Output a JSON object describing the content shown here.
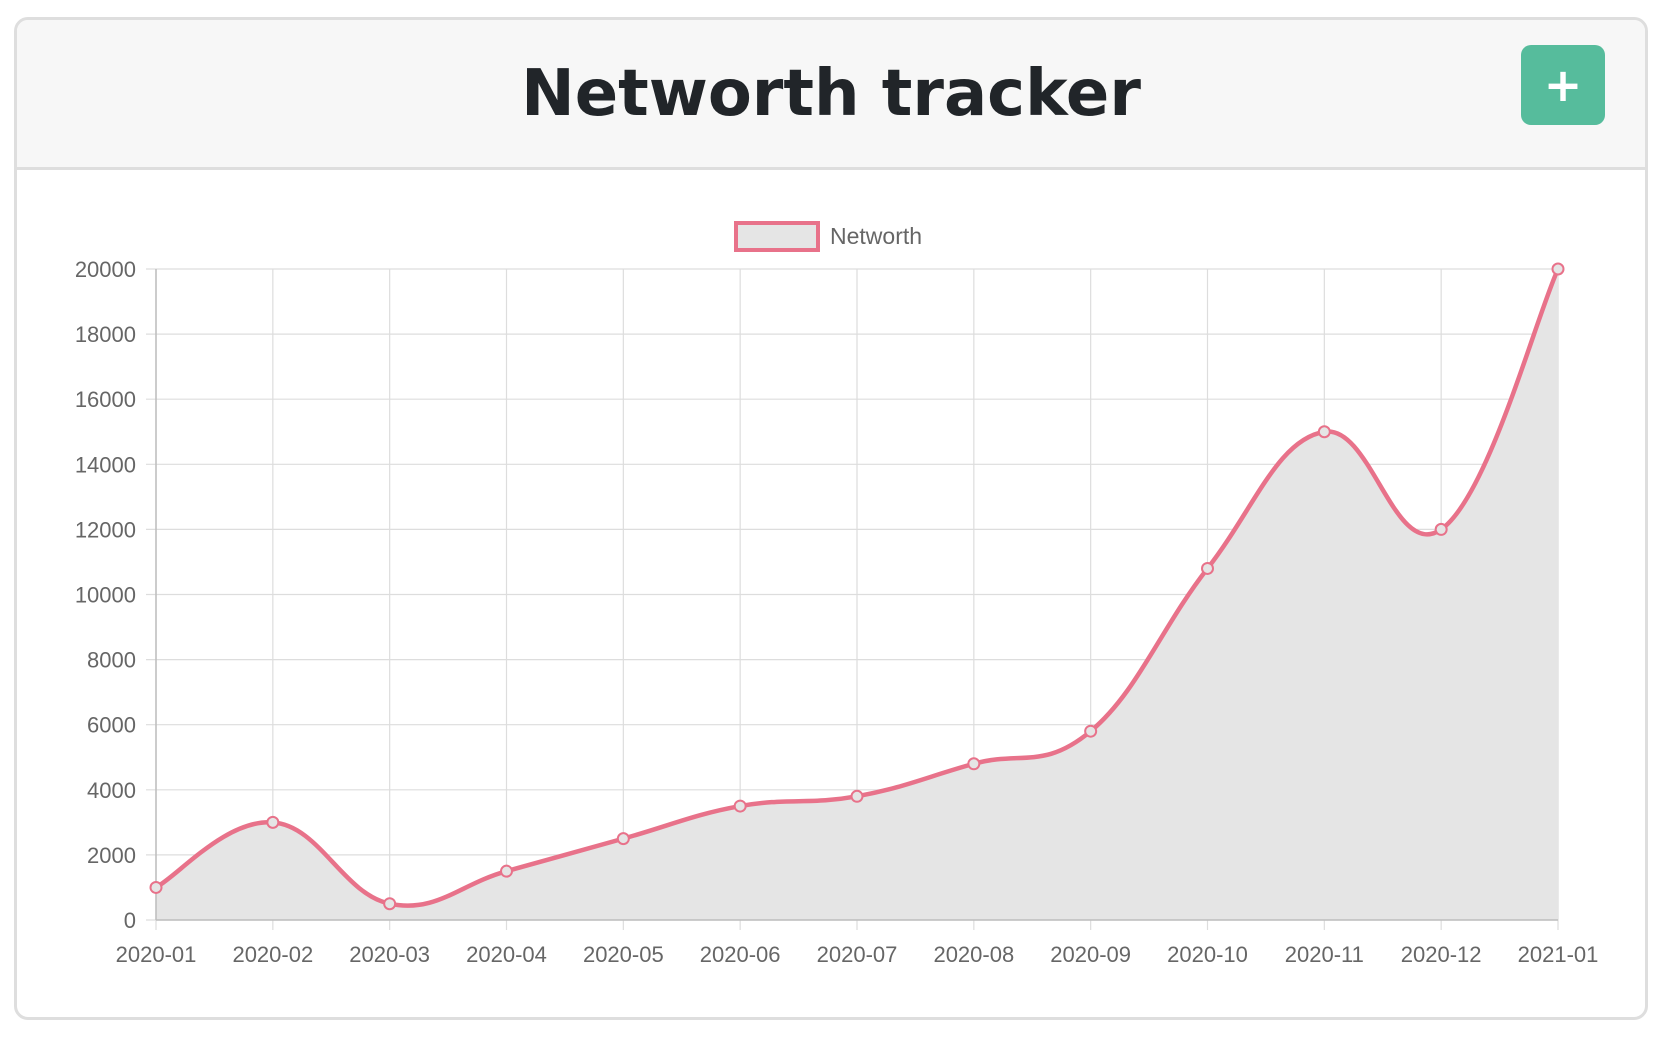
{
  "header": {
    "title": "Networth tracker",
    "add_button_label": "+"
  },
  "colors": {
    "line": "#e8728a",
    "fill": "#e5e5e5",
    "add_button": "#56bc9c",
    "grid": "#dddddd"
  },
  "chart_data": {
    "type": "line",
    "title": "",
    "xlabel": "",
    "ylabel": "",
    "categories": [
      "2020-01",
      "2020-02",
      "2020-03",
      "2020-04",
      "2020-05",
      "2020-06",
      "2020-07",
      "2020-08",
      "2020-09",
      "2020-10",
      "2020-11",
      "2020-12",
      "2021-01"
    ],
    "series": [
      {
        "name": "Networth",
        "values": [
          1000,
          3000,
          500,
          1500,
          2500,
          3500,
          3800,
          4800,
          5800,
          10800,
          15000,
          12000,
          20000
        ]
      }
    ],
    "yticks": [
      "0",
      "2000",
      "4000",
      "6000",
      "8000",
      "10000",
      "12000",
      "14000",
      "16000",
      "18000",
      "20000"
    ],
    "ylim": [
      0,
      20000
    ],
    "grid": true,
    "filled": true,
    "curve": "smooth",
    "legend_position": "top-center"
  }
}
